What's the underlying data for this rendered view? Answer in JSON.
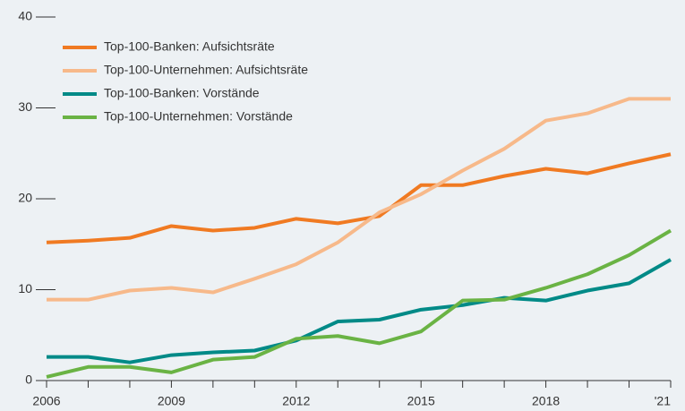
{
  "chart_data": {
    "type": "line",
    "categories": [
      "2006",
      null,
      null,
      "2009",
      null,
      null,
      "2012",
      null,
      null,
      "2015",
      null,
      null,
      "2018",
      null,
      null,
      "'21"
    ],
    "series": [
      {
        "name": "Top-100-Banken: Aufsichtsräte",
        "color": "#f07a22",
        "values": [
          15.2,
          15.4,
          15.7,
          17.0,
          16.5,
          16.8,
          17.8,
          17.3,
          18.1,
          21.5,
          21.5,
          22.5,
          23.3,
          22.8,
          23.9,
          24.9
        ]
      },
      {
        "name": "Top-100-Unternehmen: Aufsichtsräte",
        "color": "#f7b98a",
        "values": [
          8.9,
          8.9,
          9.9,
          10.2,
          9.7,
          11.2,
          12.8,
          15.2,
          18.5,
          20.5,
          23.1,
          25.5,
          28.6,
          29.4,
          31.0,
          31.0
        ]
      },
      {
        "name": "Top-100-Banken: Vorstände",
        "color": "#008a87",
        "values": [
          2.6,
          2.6,
          2.0,
          2.8,
          3.1,
          3.3,
          4.4,
          6.5,
          6.7,
          7.8,
          8.3,
          9.1,
          8.8,
          9.9,
          10.7,
          13.3
        ]
      },
      {
        "name": "Top-100-Unternehmen: Vorstände",
        "color": "#6ab344",
        "values": [
          0.4,
          1.5,
          1.5,
          0.9,
          2.3,
          2.6,
          4.6,
          4.9,
          4.1,
          5.4,
          8.8,
          8.9,
          10.2,
          11.7,
          13.8,
          16.5
        ]
      }
    ],
    "ylim": [
      0,
      40
    ],
    "yticks": [
      0,
      10,
      20,
      30,
      40
    ],
    "legend": "upper left"
  }
}
